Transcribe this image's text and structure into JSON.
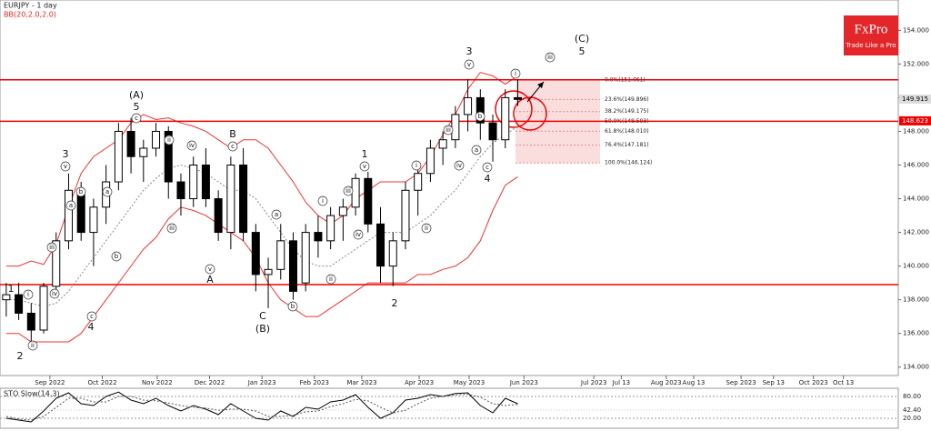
{
  "chart_data": {
    "type": "candlestick",
    "title": "EURJPY - 1 day",
    "indicator": "BB(20,2.0,2.0)",
    "logo": {
      "name": "FxPro",
      "tagline": "Trade Like a Pro"
    },
    "ylim": [
      133.5,
      155.8
    ],
    "yticks": [
      {
        "value": 134,
        "label": "134.000"
      },
      {
        "value": 136,
        "label": "136.000"
      },
      {
        "value": 138,
        "label": "138.000"
      },
      {
        "value": 140,
        "label": "140.000"
      },
      {
        "value": 142,
        "label": "142.000"
      },
      {
        "value": 144,
        "label": "144.000"
      },
      {
        "value": 146,
        "label": "146.000"
      },
      {
        "value": 148,
        "label": "148.000"
      },
      {
        "value": 150,
        "label": "150.000"
      },
      {
        "value": 152,
        "label": "152.000"
      },
      {
        "value": 154,
        "label": "154.000"
      }
    ],
    "xlim": [
      0,
      360
    ],
    "xticks": [
      {
        "value": 20,
        "label": "Sep 2022"
      },
      {
        "value": 41,
        "label": "Oct 2022"
      },
      {
        "value": 63,
        "label": "Nov 2022"
      },
      {
        "value": 84,
        "label": "Dec 2022"
      },
      {
        "value": 105,
        "label": "Jan 2023"
      },
      {
        "value": 126,
        "label": "Feb 2023"
      },
      {
        "value": 145,
        "label": "Mar 2023"
      },
      {
        "value": 168,
        "label": "Apr 2023"
      },
      {
        "value": 188,
        "label": "May 2023"
      },
      {
        "value": 210,
        "label": "Jun 2023"
      },
      {
        "value": 238,
        "label": "Jul 2023"
      },
      {
        "value": 249,
        "label": "Jul 13"
      },
      {
        "value": 267,
        "label": "Aug 2023"
      },
      {
        "value": 278,
        "label": "Aug 13"
      },
      {
        "value": 297,
        "label": "Sep 2023"
      },
      {
        "value": 310,
        "label": "Sep 13"
      },
      {
        "value": 326,
        "label": "Oct 2023"
      },
      {
        "value": 338,
        "label": "Oct 13"
      }
    ],
    "x": [
      2.5,
      7.5,
      12.5,
      17.5,
      22.5,
      27.5,
      32.5,
      37.5,
      42.5,
      47.5,
      52.5,
      57.5,
      62.5,
      67.5,
      72.5,
      77.5,
      82.5,
      87.5,
      92.5,
      97.5,
      102.5,
      107.5,
      112.5,
      117.5,
      122.5,
      127.5,
      132.5,
      137.5,
      142.5,
      147.5,
      152.5,
      157.5,
      162.5,
      167.5,
      172.5,
      177.5,
      182.5,
      187.5,
      192.5,
      197.5,
      202.5,
      207.5
    ],
    "open": [
      138,
      138.3,
      137.2,
      136.2,
      138.8,
      141.5,
      144.5,
      142,
      143.5,
      145,
      148,
      146.5,
      147,
      148,
      145,
      144,
      146,
      144,
      142,
      146,
      142,
      139.5,
      139.8,
      141.5,
      139,
      142,
      141.5,
      143,
      143.5,
      145.2,
      142.5,
      140,
      141.5,
      144.5,
      145.5,
      147,
      147.5,
      149,
      150,
      148.5,
      147.5,
      150
    ],
    "high": [
      139,
      139,
      137.8,
      139,
      142,
      145.5,
      145,
      144,
      146,
      148.5,
      148.8,
      147.5,
      148.5,
      148.3,
      145.5,
      146.5,
      147,
      144.5,
      146.5,
      147,
      142.5,
      140.5,
      142.5,
      142,
      142.5,
      143,
      143.5,
      144,
      145.5,
      145.6,
      143.5,
      142,
      145,
      146,
      147.5,
      148,
      149.5,
      151.1,
      150.5,
      149,
      150.5,
      151.1
    ],
    "low": [
      137,
      136.8,
      135.5,
      136,
      138.5,
      141,
      141.5,
      140,
      142.5,
      144.5,
      145.5,
      145,
      146.5,
      144,
      143,
      143.5,
      143.5,
      141.5,
      141,
      141.5,
      138.5,
      137.5,
      139.2,
      138,
      138.5,
      140.5,
      141,
      141.5,
      143,
      142,
      139,
      138.8,
      141,
      143,
      145,
      146,
      147,
      148,
      147.5,
      146.2,
      147,
      149.5
    ],
    "close": [
      138.3,
      137.2,
      136.2,
      138.8,
      141.5,
      144.5,
      142,
      143.5,
      145,
      148,
      146.5,
      147,
      148,
      145,
      144,
      146,
      144,
      142,
      146,
      142,
      139.5,
      139.8,
      141.5,
      138.5,
      142,
      141.5,
      143,
      143.5,
      145.2,
      142.5,
      140,
      141.5,
      144.5,
      145.5,
      147,
      147.5,
      149,
      150,
      148.5,
      147.5,
      150,
      149.9
    ],
    "bb_upper": [
      140,
      140,
      140.3,
      140.1,
      141.3,
      143.5,
      145.5,
      146.5,
      147,
      147.5,
      148.5,
      149,
      148.7,
      148.8,
      148.5,
      148.3,
      148,
      147.5,
      147,
      147.5,
      147.5,
      147,
      146,
      145,
      143.8,
      143,
      142.5,
      143,
      144,
      144.5,
      145,
      145,
      145,
      145.5,
      146.5,
      147.8,
      149,
      150.5,
      151.5,
      151.3,
      150.8,
      151.3
    ],
    "bb_middle": [
      138,
      138,
      137.8,
      137.6,
      137.8,
      138.5,
      139.5,
      140.5,
      141.5,
      142.5,
      143.5,
      144.5,
      145.2,
      145.8,
      146,
      145.8,
      145.5,
      145,
      144.5,
      144.5,
      144,
      143,
      142,
      141,
      140.3,
      140,
      140,
      140.5,
      141,
      141.5,
      142,
      142,
      142,
      142.5,
      143,
      143.8,
      144.5,
      145.5,
      146.5,
      147.3,
      147.8,
      148.3
    ],
    "bb_lower": [
      136,
      136,
      135.5,
      135.5,
      135.5,
      135.5,
      136,
      137,
      138,
      139,
      140,
      141,
      141.7,
      142.8,
      143.5,
      143.3,
      143,
      142.5,
      142,
      141.5,
      140.5,
      139,
      138,
      137.5,
      137,
      137,
      137.5,
      138,
      138.5,
      139,
      139,
      139,
      139,
      139.5,
      139.5,
      139.8,
      140,
      140.5,
      141.5,
      143.3,
      144.8,
      145.3
    ],
    "levels": [
      151.06,
      148.6,
      138.9
    ],
    "price_labels": [
      {
        "value": 149.915,
        "label": "149.915"
      },
      {
        "value": 148.623,
        "label": "148.623"
      }
    ],
    "fib_levels": [
      {
        "price": 151.061,
        "label": "0.0%(151.061)"
      },
      {
        "price": 149.896,
        "label": "23.6%(149.896)"
      },
      {
        "price": 149.175,
        "label": "38.2%(149.175)"
      },
      {
        "price": 148.593,
        "label": "50.0%(148.593)"
      },
      {
        "price": 148.01,
        "label": "61.8%(148.010)"
      },
      {
        "price": 147.181,
        "label": "76.4%(147.181)"
      },
      {
        "price": 146.124,
        "label": "100.0%(146.124)"
      }
    ],
    "annotations": [
      "1",
      "2",
      "3",
      "4",
      "(A)",
      "5",
      "B",
      "A",
      "C",
      "(B)",
      "1",
      "2",
      "3",
      "4",
      "(C)",
      "5"
    ],
    "circled_labels": [
      "i",
      "ii",
      "iii",
      "iv",
      "v",
      "a",
      "b",
      "c",
      "a",
      "b",
      "c",
      "ii",
      "iii",
      "iv",
      "v",
      "c",
      "a",
      "b",
      "i",
      "ii",
      "iii",
      "iv",
      "v",
      "i",
      "ii",
      "iii",
      "iv",
      "v",
      "a",
      "b",
      "c",
      "i",
      "iii"
    ],
    "stochastic": {
      "title": "STO Slow(14,3)",
      "ylim": [
        0,
        100
      ],
      "yticks": [
        {
          "value": 80,
          "label": "80.00"
        },
        {
          "value": 20,
          "label": "20.00"
        }
      ],
      "current": {
        "value": 42.4,
        "label": "42.40"
      },
      "k": [
        20,
        15,
        10,
        40,
        75,
        90,
        60,
        55,
        80,
        92,
        70,
        60,
        75,
        55,
        40,
        55,
        45,
        30,
        60,
        40,
        20,
        15,
        40,
        25,
        50,
        45,
        65,
        70,
        85,
        50,
        20,
        35,
        70,
        75,
        85,
        80,
        88,
        90,
        55,
        35,
        75,
        60
      ],
      "d": [
        25,
        18,
        15,
        25,
        50,
        75,
        75,
        65,
        65,
        80,
        80,
        70,
        68,
        62,
        55,
        50,
        48,
        42,
        45,
        45,
        40,
        25,
        25,
        28,
        38,
        40,
        52,
        60,
        72,
        68,
        50,
        35,
        42,
        60,
        75,
        80,
        84,
        86,
        78,
        60,
        55,
        58
      ]
    }
  }
}
